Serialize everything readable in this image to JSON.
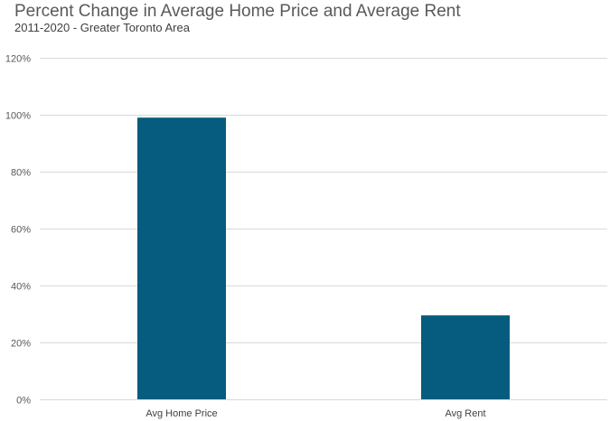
{
  "chart_data": {
    "type": "bar",
    "title": "Percent Change in Average Home Price and Average Rent",
    "subtitle": "2011-2020 - Greater Toronto Area",
    "categories": [
      "Avg Home Price",
      "Avg Rent"
    ],
    "values": [
      99,
      29.5
    ],
    "ylim": [
      0,
      120
    ],
    "yticks": [
      0,
      20,
      40,
      60,
      80,
      100,
      120
    ],
    "ytick_labels": [
      "0%",
      "20%",
      "40%",
      "60%",
      "80%",
      "100%",
      "120%"
    ],
    "grid": true,
    "legend": "none",
    "bar_color": "#055C7E",
    "grid_color": "#D9D9D9"
  }
}
